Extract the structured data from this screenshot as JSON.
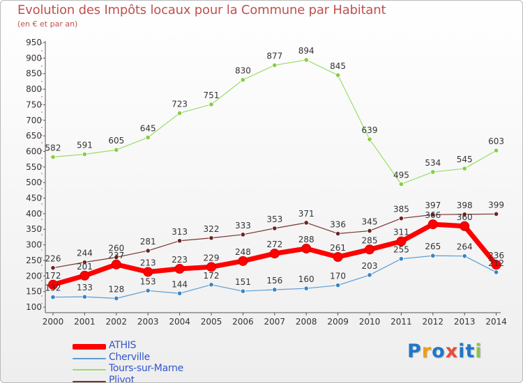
{
  "title": "Evolution des Impôts locaux pour la Commune par Habitant",
  "subtitle": "(en € et par an)",
  "brand": {
    "letters": [
      "P",
      "r",
      "o",
      "x",
      "i",
      "t",
      "i"
    ],
    "colors": [
      "#1f77c9",
      "#f39c12",
      "#1f77c9",
      "#e74c3c",
      "#1f77c9",
      "#1f77c9",
      "#8bc34a"
    ]
  },
  "chart_data": {
    "type": "line",
    "x": [
      "2000",
      "2001",
      "2002",
      "2003",
      "2004",
      "2005",
      "2006",
      "2007",
      "2008",
      "2009",
      "2010",
      "2011",
      "2012",
      "2013",
      "2014"
    ],
    "ylim": [
      100,
      950
    ],
    "yticks": [
      "100",
      "150",
      "200",
      "250",
      "300",
      "350",
      "400",
      "450",
      "500",
      "550",
      "600",
      "650",
      "700",
      "750",
      "800",
      "850",
      "900",
      "950"
    ],
    "grid": false,
    "legend_position": "bottom-left",
    "series": [
      {
        "name": "Tours-sur-Marne",
        "color": "#99dd66",
        "line_width": 1.2,
        "marker_color": "#88cc44",
        "values": [
          582,
          591,
          605,
          645,
          723,
          751,
          830,
          877,
          894,
          845,
          639,
          495,
          534,
          545,
          603
        ],
        "labels": [
          "582",
          "591",
          "605",
          "645",
          "723",
          "751",
          "830",
          "877",
          "894",
          "845",
          "639",
          "495",
          "534",
          "545",
          "603"
        ]
      },
      {
        "name": "Plivot",
        "color": "#7a3232",
        "line_width": 1.2,
        "marker_color": "#6e2424",
        "values": [
          226,
          244,
          260,
          281,
          313,
          322,
          333,
          353,
          371,
          336,
          345,
          385,
          397,
          398,
          399
        ],
        "labels": [
          "226",
          "244",
          "260",
          "281",
          "313",
          "322",
          "333",
          "353",
          "371",
          "336",
          "345",
          "385",
          "397",
          "398",
          "399"
        ]
      },
      {
        "name": "Cherville",
        "color": "#5a9bd4",
        "line_width": 1.2,
        "marker_color": "#3a84c8",
        "values": [
          132,
          133,
          128,
          153,
          144,
          172,
          151,
          156,
          160,
          170,
          203,
          255,
          265,
          264,
          212
        ],
        "labels": [
          "132",
          "133",
          "128",
          "153",
          "144",
          "172",
          "151",
          "156",
          "160",
          "170",
          "203",
          "255",
          "265",
          "264",
          "212"
        ]
      },
      {
        "name": "ATHIS",
        "color": "#ff0000",
        "line_width": 7,
        "marker_color": "#ff0000",
        "values": [
          172,
          201,
          237,
          213,
          223,
          229,
          248,
          272,
          288,
          261,
          285,
          311,
          366,
          360,
          236
        ],
        "labels": [
          "172",
          "201",
          "237",
          "213",
          "223",
          "229",
          "248",
          "272",
          "288",
          "261",
          "285",
          "311",
          "366",
          "360",
          "236"
        ]
      }
    ],
    "legend_order": [
      "ATHIS",
      "Cherville",
      "Tours-sur-Marne",
      "Plivot"
    ]
  }
}
